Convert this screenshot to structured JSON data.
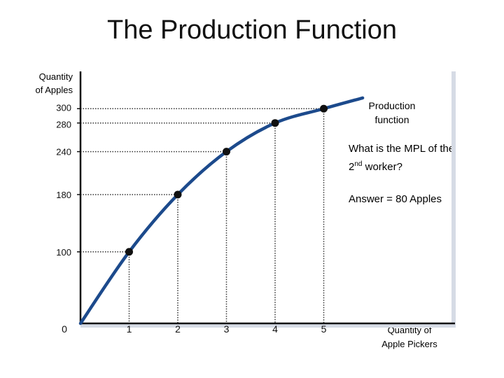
{
  "title": "The Production Function",
  "colors": {
    "curve": "#1c4a8c",
    "point": "#111111",
    "axis": "#111111",
    "shadow": "#d6dbe5"
  },
  "chart_data": {
    "type": "line",
    "title": "The Production Function",
    "xlabel_lines": [
      "Quantity of",
      "Apple Pickers"
    ],
    "ylabel_lines": [
      "Quantity",
      "of Apples"
    ],
    "x_ticks": [
      0,
      1,
      2,
      3,
      4,
      5
    ],
    "y_ticks": [
      100,
      180,
      240,
      280,
      300
    ],
    "y_zero_label": "0",
    "series": [
      {
        "name": "Production function",
        "x": [
          0,
          1,
          2,
          3,
          4,
          5,
          5.8
        ],
        "y": [
          0,
          100,
          180,
          240,
          280,
          300,
          315
        ]
      }
    ],
    "highlighted_points": {
      "x": [
        1,
        2,
        3,
        4,
        5
      ],
      "y": [
        100,
        180,
        240,
        280,
        300
      ]
    },
    "series_label_lines": [
      "Production",
      "function"
    ],
    "dotted_guides": true,
    "annotation": {
      "question_line1": "What is the MPL of the",
      "question_ordinal": "2",
      "question_suffix": "nd",
      "question_rest": " worker?",
      "answer": "Answer  = 80 Apples"
    }
  }
}
